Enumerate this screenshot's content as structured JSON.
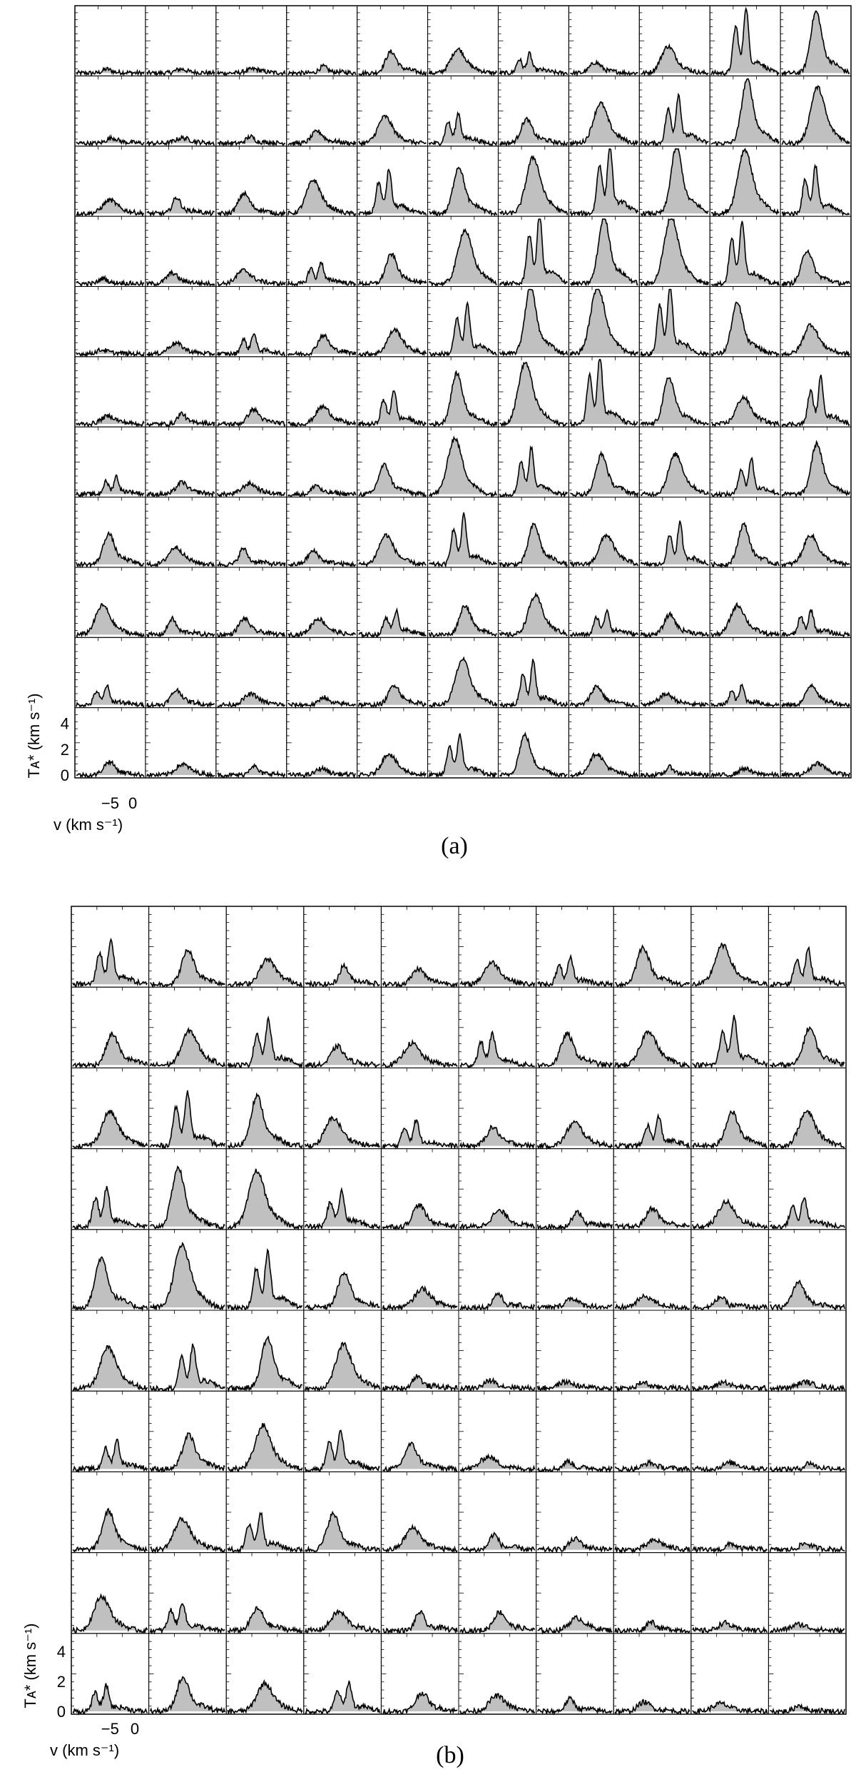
{
  "chart_data": [
    {
      "type": "line",
      "panel_label": "(a)",
      "rows": 11,
      "cols": 11,
      "xlabel": "v (km s⁻¹)",
      "ylabel": "Tᴀ* (km s⁻¹)",
      "y_tick_labels": [
        "0",
        "2",
        "4"
      ],
      "x_tick_labels": [
        "−5",
        "0"
      ],
      "ylim": [
        0,
        5
      ],
      "fill": "#c0c0c0",
      "line_color": "#000000",
      "spectra_peak_TA": [
        [
          0.3,
          0.3,
          0.3,
          0.5,
          1.6,
          1.8,
          1.4,
          0.8,
          2.0,
          4.8,
          4.6
        ],
        [
          0.4,
          0.4,
          0.5,
          0.9,
          2.0,
          2.2,
          1.8,
          3.0,
          3.5,
          4.8,
          4.2
        ],
        [
          1.0,
          1.2,
          1.5,
          2.5,
          3.2,
          3.5,
          4.2,
          5.0,
          5.0,
          4.8,
          3.5
        ],
        [
          0.4,
          0.8,
          1.0,
          1.6,
          2.2,
          4.0,
          5.0,
          5.0,
          5.0,
          4.6,
          2.5
        ],
        [
          0.3,
          0.8,
          1.5,
          1.4,
          1.8,
          3.6,
          5.0,
          5.0,
          5.0,
          3.8,
          2.2
        ],
        [
          0.6,
          0.8,
          1.1,
          1.3,
          2.5,
          3.8,
          4.6,
          5.0,
          3.5,
          2.0,
          3.4
        ],
        [
          1.3,
          0.9,
          0.8,
          0.7,
          2.2,
          4.2,
          3.4,
          3.0,
          3.0,
          2.6,
          3.8
        ],
        [
          2.3,
          1.3,
          1.2,
          1.0,
          2.2,
          3.6,
          3.0,
          2.2,
          3.0,
          3.0,
          2.2
        ],
        [
          2.2,
          1.2,
          1.2,
          1.2,
          1.8,
          2.2,
          2.9,
          1.8,
          1.5,
          2.2,
          1.8
        ],
        [
          1.4,
          1.1,
          0.8,
          0.6,
          1.5,
          3.4,
          3.2,
          1.4,
          0.8,
          1.4,
          1.5
        ],
        [
          1.0,
          0.8,
          0.7,
          0.5,
          1.6,
          3.0,
          3.0,
          1.6,
          0.6,
          0.5,
          0.9
        ]
      ]
    },
    {
      "type": "line",
      "panel_label": "(b)",
      "rows": 10,
      "cols": 10,
      "xlabel": "v (km s⁻¹)",
      "ylabel": "Tᴀ* (km s⁻¹)",
      "y_tick_labels": [
        "0",
        "2",
        "4"
      ],
      "x_tick_labels": [
        "−5",
        "0"
      ],
      "ylim": [
        0,
        5
      ],
      "fill": "#c0c0c0",
      "line_color": "#000000",
      "spectra_peak_TA": [
        [
          2.8,
          2.2,
          1.6,
          1.2,
          1.0,
          1.4,
          1.6,
          2.4,
          2.5,
          2.2
        ],
        [
          2.0,
          2.2,
          2.8,
          1.2,
          1.4,
          2.0,
          2.0,
          2.2,
          3.0,
          2.4
        ],
        [
          2.2,
          3.4,
          3.2,
          1.8,
          1.6,
          1.2,
          1.5,
          1.8,
          2.2,
          2.2
        ],
        [
          2.5,
          3.8,
          3.6,
          2.2,
          1.4,
          1.0,
          1.0,
          1.2,
          1.6,
          1.8
        ],
        [
          3.2,
          4.0,
          3.5,
          2.2,
          1.2,
          0.9,
          0.6,
          0.7,
          0.7,
          1.6
        ],
        [
          2.6,
          2.7,
          3.2,
          2.8,
          0.8,
          0.5,
          0.4,
          0.4,
          0.4,
          0.4
        ],
        [
          1.8,
          2.2,
          2.8,
          2.4,
          1.6,
          0.8,
          0.5,
          0.4,
          0.4,
          0.4
        ],
        [
          2.5,
          2.0,
          2.3,
          2.3,
          1.4,
          1.0,
          0.7,
          0.6,
          0.4,
          0.4
        ],
        [
          2.2,
          1.8,
          1.4,
          1.2,
          1.2,
          1.2,
          0.8,
          0.6,
          0.5,
          0.4
        ],
        [
          1.6,
          2.2,
          1.8,
          1.8,
          1.2,
          1.0,
          0.8,
          0.6,
          0.5,
          0.4
        ]
      ]
    }
  ]
}
